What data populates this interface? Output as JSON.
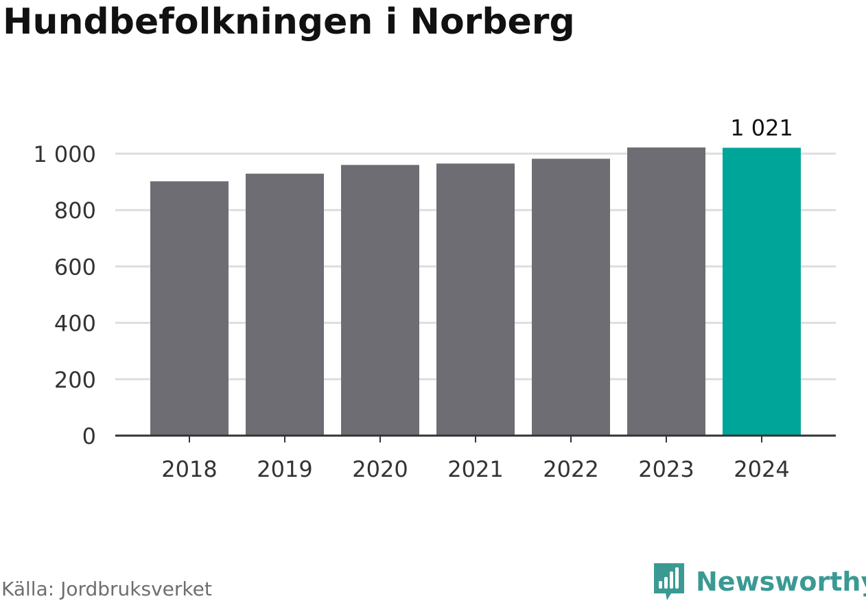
{
  "title": "Hundbefolkningen i Norberg",
  "source": "Källa: Jordbruksverket",
  "brand": {
    "name": "Newsworthy",
    "icon": "newsworthy-logo-icon",
    "color": "#3a9a93"
  },
  "colors": {
    "bar": "#6e6d74",
    "highlight": "#00a59a",
    "grid": "#dddddd",
    "axis": "#333333",
    "text": "#333333"
  },
  "chart_data": {
    "type": "bar",
    "categories": [
      "2018",
      "2019",
      "2020",
      "2021",
      "2022",
      "2023",
      "2024"
    ],
    "values": [
      902,
      929,
      960,
      965,
      982,
      1022,
      1021
    ],
    "highlight_index": 6,
    "value_labels": [
      {
        "index": 6,
        "text": "1 021"
      }
    ],
    "yticks": [
      {
        "value": 0,
        "label": "0"
      },
      {
        "value": 200,
        "label": "200"
      },
      {
        "value": 400,
        "label": "400"
      },
      {
        "value": 600,
        "label": "600"
      },
      {
        "value": 800,
        "label": "800"
      },
      {
        "value": 1000,
        "label": "1 000"
      }
    ],
    "ylim": [
      0,
      1000
    ],
    "grid": true,
    "title": "Hundbefolkningen i Norberg",
    "xlabel": "",
    "ylabel": ""
  }
}
